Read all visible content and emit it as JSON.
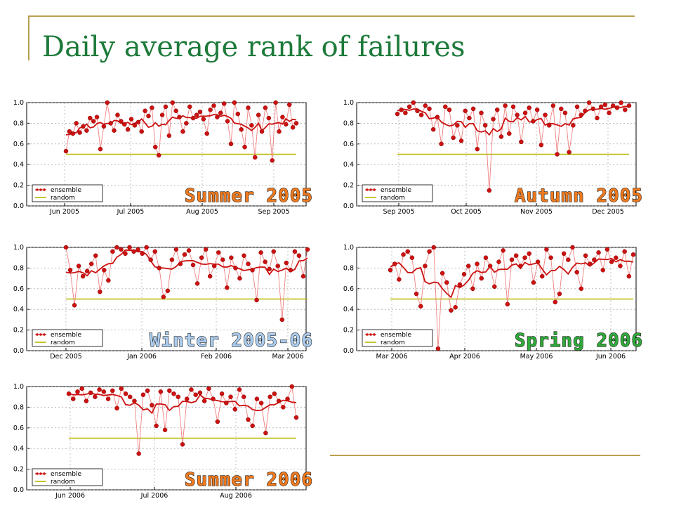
{
  "slide": {
    "title": "Daily average rank of failures"
  },
  "colors": {
    "ensemble": "#cc1111",
    "random": "#b8b800",
    "title": "#1d7a3a",
    "frame": "#b8a050"
  },
  "chart_data": [
    {
      "type": "line",
      "season_label": "Summer 2005",
      "season_color": "#f07a1e",
      "yticks": [
        "1.0",
        "0.8",
        "0.6",
        "0.4",
        "0.2",
        "0.0"
      ],
      "ylim": [
        0,
        1
      ],
      "xticks": [
        "Jun 2005",
        "Jul 2005",
        "Aug 2005",
        "Sep 2005"
      ],
      "legend": [
        "ensemble",
        "random"
      ],
      "series": [
        {
          "name": "ensemble",
          "values": [
            0.53,
            0.72,
            0.7,
            0.8,
            0.71,
            0.77,
            0.73,
            0.85,
            0.82,
            0.86,
            0.55,
            0.77,
            1.0,
            0.8,
            0.73,
            0.88,
            0.82,
            0.79,
            0.74,
            0.84,
            0.78,
            0.81,
            0.72,
            0.92,
            0.87,
            0.95,
            0.57,
            0.49,
            0.88,
            0.96,
            0.68,
            1.0,
            0.92,
            0.86,
            0.72,
            0.8,
            0.96,
            0.85,
            0.88,
            0.91,
            0.84,
            0.7,
            0.93,
            0.97,
            0.86,
            0.9,
            0.99,
            0.82,
            0.6,
            1.0,
            0.89,
            0.74,
            0.57,
            0.95,
            0.78,
            0.47,
            0.88,
            0.72,
            0.95,
            0.85,
            0.44,
            1.0,
            0.72,
            0.86,
            0.79,
            0.98,
            0.76,
            0.8
          ]
        },
        {
          "name": "random",
          "values": [
            0.5,
            0.5
          ]
        }
      ]
    },
    {
      "type": "line",
      "season_label": "Autumn 2005",
      "season_color": "#f07a1e",
      "yticks": [
        "1.0",
        "0.8",
        "0.6",
        "0.4",
        "0.2",
        "0.0"
      ],
      "ylim": [
        0,
        1
      ],
      "xticks": [
        "Sep 2005",
        "Oct 2005",
        "Nov 2005",
        "Dec 2005"
      ],
      "legend": [
        "ensemble",
        "random"
      ],
      "series": [
        {
          "name": "ensemble",
          "values": [
            0.89,
            0.93,
            0.9,
            0.96,
            1.0,
            0.92,
            0.88,
            0.97,
            0.94,
            0.74,
            0.86,
            0.6,
            0.96,
            0.93,
            0.66,
            0.78,
            0.63,
            0.92,
            0.85,
            0.94,
            0.55,
            0.9,
            0.78,
            0.15,
            0.84,
            0.93,
            0.67,
            0.97,
            0.7,
            0.96,
            0.88,
            0.62,
            0.9,
            0.95,
            0.82,
            0.93,
            0.59,
            0.88,
            0.78,
            0.97,
            0.5,
            0.94,
            0.9,
            0.52,
            0.78,
            0.96,
            0.88,
            0.92,
            1.0,
            0.94,
            0.85,
            0.96,
            0.98,
            0.9,
            0.97,
            0.95,
            1.0,
            0.93,
            0.97
          ]
        },
        {
          "name": "random",
          "values": [
            0.5,
            0.5
          ]
        }
      ]
    },
    {
      "type": "line",
      "season_label": "Winter 2005-06",
      "season_color": "#aaccee",
      "yticks": [
        "1.0",
        "0.8",
        "0.6",
        "0.4",
        "0.2",
        "0.0"
      ],
      "ylim": [
        0,
        1
      ],
      "xticks": [
        "Dec 2005",
        "Jan 2006",
        "Feb 2006",
        "Mar 2006"
      ],
      "legend": [
        "ensemble",
        "random"
      ],
      "series": [
        {
          "name": "ensemble",
          "values": [
            1.0,
            0.78,
            0.44,
            0.82,
            0.72,
            0.77,
            0.84,
            0.92,
            0.57,
            0.78,
            0.68,
            0.96,
            1.0,
            0.98,
            0.94,
            1.0,
            0.96,
            0.98,
            0.94,
            1.0,
            0.88,
            0.96,
            0.8,
            0.52,
            0.58,
            0.88,
            0.98,
            0.84,
            0.93,
            0.97,
            0.83,
            0.65,
            0.9,
            0.98,
            0.72,
            0.82,
            0.95,
            0.88,
            0.61,
            0.9,
            0.8,
            0.7,
            0.92,
            0.84,
            0.78,
            0.49,
            0.95,
            0.86,
            0.79,
            0.96,
            0.82,
            0.3,
            0.85,
            0.78,
            0.96,
            0.92,
            0.72,
            0.98
          ]
        },
        {
          "name": "random",
          "values": [
            0.5,
            0.5
          ]
        }
      ]
    },
    {
      "type": "line",
      "season_label": "Spring 2006",
      "season_color": "#2faa3a",
      "yticks": [
        "1.0",
        "0.8",
        "0.6",
        "0.4",
        "0.2",
        "0.0"
      ],
      "ylim": [
        0,
        1
      ],
      "xticks": [
        "Mar 2006",
        "Apr 2006",
        "May 2006",
        "Jun 2006"
      ],
      "legend": [
        "ensemble",
        "random"
      ],
      "series": [
        {
          "name": "ensemble",
          "values": [
            0.78,
            0.84,
            0.69,
            0.93,
            0.96,
            0.9,
            0.55,
            0.43,
            0.82,
            0.96,
            1.0,
            0.02,
            0.75,
            0.66,
            0.39,
            0.42,
            0.64,
            0.74,
            0.82,
            0.6,
            0.84,
            0.7,
            0.9,
            0.82,
            0.62,
            0.86,
            0.97,
            0.45,
            0.88,
            0.92,
            0.82,
            0.9,
            0.94,
            0.66,
            0.86,
            0.72,
            0.98,
            0.9,
            0.47,
            0.55,
            0.94,
            0.88,
            1.0,
            0.76,
            0.6,
            0.92,
            0.84,
            0.88,
            0.95,
            0.78,
            0.98,
            0.86,
            0.9,
            0.82,
            0.96,
            0.72,
            0.93
          ]
        },
        {
          "name": "random",
          "values": [
            0.5,
            0.5
          ]
        }
      ]
    },
    {
      "type": "line",
      "season_label": "Summer 2006",
      "season_color": "#f07a1e",
      "yticks": [
        "1.0",
        "0.8",
        "0.6",
        "0.4",
        "0.2",
        "0.0"
      ],
      "ylim": [
        0,
        1
      ],
      "xticks": [
        "Jun 2006",
        "Jul 2006",
        "Aug 2006"
      ],
      "legend": [
        "ensemble",
        "random"
      ],
      "series": [
        {
          "name": "ensemble",
          "values": [
            0.93,
            0.88,
            0.95,
            0.98,
            0.86,
            0.94,
            0.9,
            0.97,
            0.95,
            0.88,
            0.96,
            0.79,
            0.98,
            0.93,
            0.9,
            0.86,
            0.35,
            0.92,
            0.96,
            0.82,
            0.62,
            0.95,
            0.58,
            0.96,
            0.93,
            0.9,
            0.44,
            0.88,
            0.97,
            0.92,
            0.94,
            0.86,
            0.98,
            0.88,
            0.66,
            0.93,
            0.84,
            0.9,
            0.78,
            0.97,
            0.9,
            0.68,
            0.62,
            0.88,
            0.84,
            0.55,
            0.9,
            0.93,
            0.86,
            0.8,
            0.88,
            1.0,
            0.7
          ]
        },
        {
          "name": "random",
          "values": [
            0.5,
            0.5
          ]
        }
      ]
    }
  ]
}
